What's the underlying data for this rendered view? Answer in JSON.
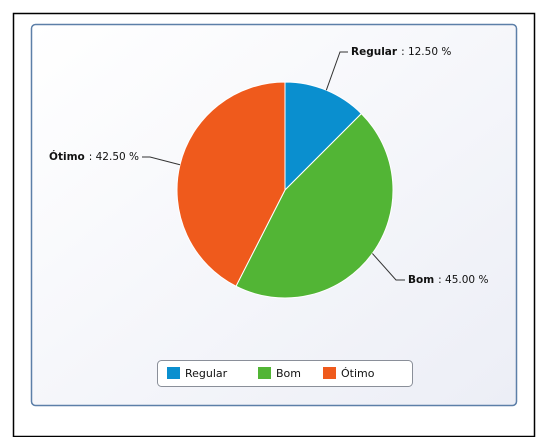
{
  "chart_data": {
    "type": "pie",
    "categories": [
      "Regular",
      "Bom",
      "Ótimo"
    ],
    "values": [
      12.5,
      45,
      42.5
    ],
    "value_labels": [
      ": 12.50 %",
      ": 45.00 %",
      ": 42.50 %"
    ],
    "colors": [
      "#0a8fcf",
      "#52b535",
      "#ef5a1c"
    ],
    "legend": "bottom"
  }
}
